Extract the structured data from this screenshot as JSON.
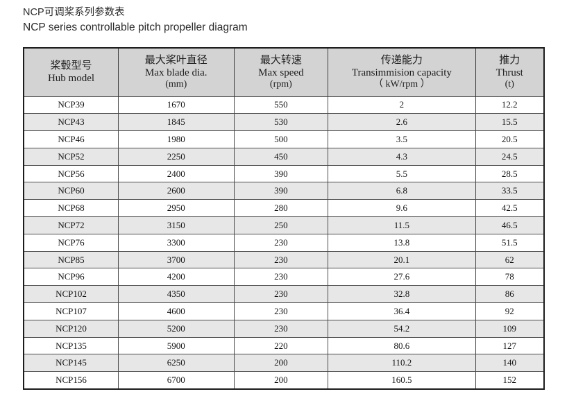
{
  "titles": {
    "zh": "NCP可调桨系列参数表",
    "en": "NCP series controllable pitch propeller diagram"
  },
  "colors": {
    "header_bg": "#d3d3d3",
    "stripe_bg": "#e7e7e7",
    "border": "#1b1b1b",
    "text": "#1d1d1d"
  },
  "table": {
    "columns": [
      {
        "zh": "桨毂型号",
        "en": "Hub model",
        "unit": ""
      },
      {
        "zh": "最大桨叶直径",
        "en": "Max blade dia.",
        "unit": "(mm)"
      },
      {
        "zh": "最大转速",
        "en": "Max speed",
        "unit": "(rpm)"
      },
      {
        "zh": "传递能力",
        "en": "Transimmision capacity",
        "unit": "（ kW/rpm ）"
      },
      {
        "zh": "推力",
        "en": "Thrust",
        "unit": "(t)"
      }
    ],
    "rows": [
      [
        "NCP39",
        "1670",
        "550",
        "2",
        "12.2"
      ],
      [
        "NCP43",
        "1845",
        "530",
        "2.6",
        "15.5"
      ],
      [
        "NCP46",
        "1980",
        "500",
        "3.5",
        "20.5"
      ],
      [
        "NCP52",
        "2250",
        "450",
        "4.3",
        "24.5"
      ],
      [
        "NCP56",
        "2400",
        "390",
        "5.5",
        "28.5"
      ],
      [
        "NCP60",
        "2600",
        "390",
        "6.8",
        "33.5"
      ],
      [
        "NCP68",
        "2950",
        "280",
        "9.6",
        "42.5"
      ],
      [
        "NCP72",
        "3150",
        "250",
        "11.5",
        "46.5"
      ],
      [
        "NCP76",
        "3300",
        "230",
        "13.8",
        "51.5"
      ],
      [
        "NCP85",
        "3700",
        "230",
        "20.1",
        "62"
      ],
      [
        "NCP96",
        "4200",
        "230",
        "27.6",
        "78"
      ],
      [
        "NCP102",
        "4350",
        "230",
        "32.8",
        "86"
      ],
      [
        "NCP107",
        "4600",
        "230",
        "36.4",
        "92"
      ],
      [
        "NCP120",
        "5200",
        "230",
        "54.2",
        "109"
      ],
      [
        "NCP135",
        "5900",
        "220",
        "80.6",
        "127"
      ],
      [
        "NCP145",
        "6250",
        "200",
        "110.2",
        "140"
      ],
      [
        "NCP156",
        "6700",
        "200",
        "160.5",
        "152"
      ]
    ]
  }
}
